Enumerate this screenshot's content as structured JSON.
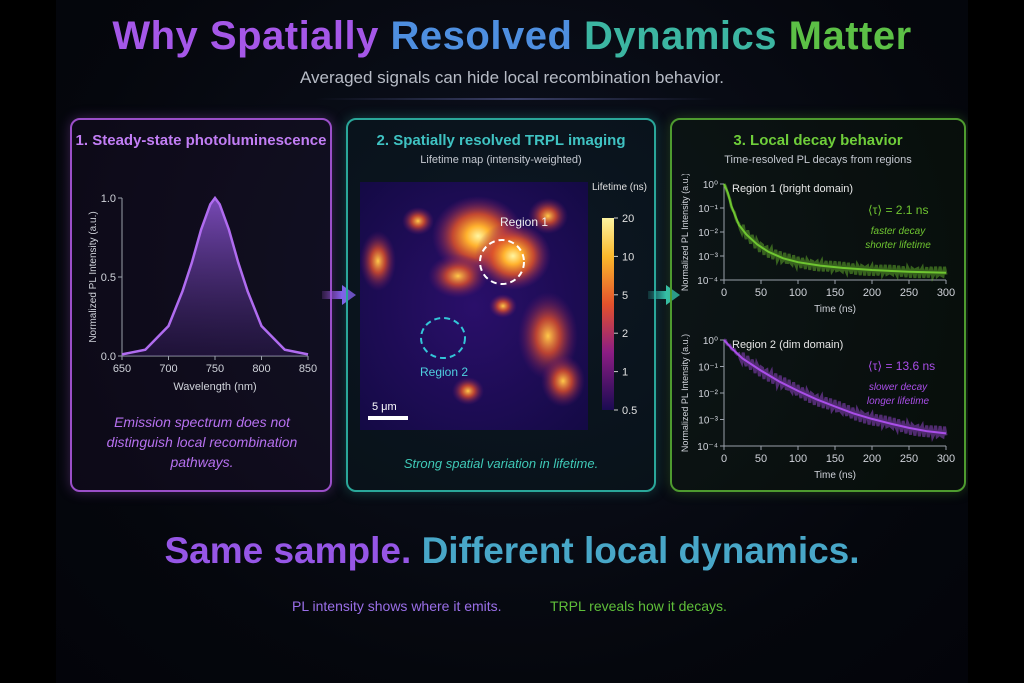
{
  "title": {
    "part1": "Why Spatially",
    "part2": "Resolved",
    "part3": "Dynamics",
    "part4": "Matter"
  },
  "subtitle": "Averaged signals can hide local recombination behavior.",
  "panel1": {
    "title": "1. Steady-state photoluminescence",
    "note": "Emission spectrum does not distinguish local recombination pathways.",
    "chart_data": {
      "type": "line",
      "xlabel": "Wavelength (nm)",
      "ylabel": "Normalized PL Intensity (a.u.)",
      "xlim": [
        650,
        850
      ],
      "ylim": [
        0,
        1.0
      ],
      "x_ticks": [
        "650",
        "700",
        "750",
        "800",
        "850"
      ],
      "y_ticks": [
        "0.0",
        "0.5",
        "1.0"
      ],
      "series": [
        {
          "x": [
            650,
            675,
            700,
            715,
            725,
            735,
            745,
            750,
            755,
            765,
            775,
            785,
            800,
            825,
            850
          ],
          "y": [
            0.01,
            0.04,
            0.19,
            0.41,
            0.59,
            0.8,
            0.96,
            1.0,
            0.96,
            0.8,
            0.59,
            0.41,
            0.19,
            0.04,
            0.01
          ]
        }
      ],
      "color": "#b06cf0"
    }
  },
  "panel2": {
    "title": "2. Spatially resolved TRPL imaging",
    "subtitle": "Lifetime map (intensity-weighted)",
    "region1": "Region 1",
    "region2": "Region 2",
    "scalebar": "5 μm",
    "colorbar_title": "Lifetime (ns)",
    "colorbar_ticks": [
      "20",
      "10",
      "5",
      "2",
      "1",
      "0.5"
    ],
    "note": "Strong spatial variation in lifetime."
  },
  "panel3": {
    "title": "3. Local decay behavior",
    "subtitle": "Time-resolved PL decays from regions",
    "chart_data": [
      {
        "type": "line",
        "yscale": "log",
        "xlabel": "Time (ns)",
        "ylabel": "Normalized PL Intensity (a.u.)",
        "xlim": [
          0,
          300
        ],
        "ylim": [
          0.0001,
          1
        ],
        "x_ticks": [
          "0",
          "50",
          "100",
          "150",
          "200",
          "250",
          "300"
        ],
        "y_ticks": [
          "10⁰",
          "10⁻¹",
          "10⁻²",
          "10⁻³",
          "10⁻⁴"
        ],
        "series_label": "Region 1 (bright domain)",
        "tau_label": "⟨τ⟩ = 2.1 ns",
        "desc1": "faster decay",
        "desc2": "shorter lifetime",
        "color": "#6fc531",
        "x": [
          0,
          5,
          10,
          20,
          30,
          45,
          60,
          80,
          100,
          130,
          160,
          200,
          250,
          300
        ],
        "y": [
          1.0,
          0.45,
          0.12,
          0.02,
          0.008,
          0.003,
          0.0015,
          0.0008,
          0.00055,
          0.0004,
          0.00032,
          0.00026,
          0.00022,
          0.0002
        ]
      },
      {
        "type": "line",
        "yscale": "log",
        "xlabel": "Time (ns)",
        "ylabel": "Normalized PL Intensity (a.u.)",
        "xlim": [
          0,
          300
        ],
        "ylim": [
          0.0001,
          1
        ],
        "x_ticks": [
          "0",
          "50",
          "100",
          "150",
          "200",
          "250",
          "300"
        ],
        "y_ticks": [
          "10⁰",
          "10⁻¹",
          "10⁻²",
          "10⁻³",
          "10⁻⁴"
        ],
        "series_label": "Region 2 (dim domain)",
        "tau_label": "⟨τ⟩ = 13.6 ns",
        "desc1": "slower decay",
        "desc2": "longer lifetime",
        "color": "#a94ee8",
        "x": [
          0,
          10,
          25,
          50,
          75,
          100,
          125,
          150,
          175,
          200,
          225,
          250,
          275,
          300
        ],
        "y": [
          1.0,
          0.5,
          0.2,
          0.07,
          0.027,
          0.012,
          0.0058,
          0.0031,
          0.0017,
          0.00105,
          0.0007,
          0.00048,
          0.00036,
          0.0003
        ]
      }
    ]
  },
  "bottom": {
    "part1": "Same sample.",
    "part2": "Different local dynamics."
  },
  "footer": {
    "left": "PL intensity shows where it emits.",
    "right": "TRPL reveals how it decays."
  }
}
